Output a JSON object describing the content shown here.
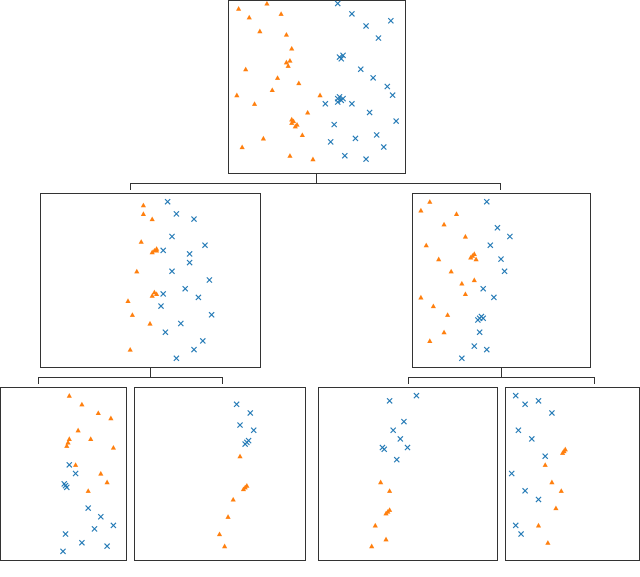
{
  "chart_data": [
    {
      "type": "scatter",
      "xlim": [
        0,
        1
      ],
      "ylim": [
        0,
        1
      ],
      "series": [
        {
          "color": "#ff7f0e",
          "marker": "triangle",
          "x": [
            0.06,
            0.12,
            0.18,
            0.22,
            0.3,
            0.33,
            0.36,
            0.28,
            0.1,
            0.05,
            0.15,
            0.25,
            0.4,
            0.45,
            0.2,
            0.08,
            0.35,
            0.42,
            0.48,
            0.52,
            0.33,
            0.35,
            0.34,
            0.36,
            0.37,
            0.39,
            0.38,
            0.36
          ],
          "y": [
            0.95,
            0.9,
            0.82,
            0.98,
            0.92,
            0.8,
            0.72,
            0.55,
            0.6,
            0.45,
            0.4,
            0.48,
            0.52,
            0.35,
            0.2,
            0.15,
            0.1,
            0.22,
            0.08,
            0.45,
            0.64,
            0.65,
            0.62,
            0.29,
            0.3,
            0.28,
            0.27,
            0.31
          ]
        },
        {
          "color": "#1f77b4",
          "marker": "cross",
          "x": [
            0.62,
            0.7,
            0.78,
            0.85,
            0.92,
            0.75,
            0.82,
            0.9,
            0.7,
            0.8,
            0.95,
            0.6,
            0.72,
            0.88,
            0.66,
            0.78,
            0.84,
            0.93,
            0.55,
            0.58,
            0.63,
            0.65,
            0.64,
            0.62,
            0.63,
            0.64,
            0.62,
            0.65
          ],
          "y": [
            0.98,
            0.92,
            0.85,
            0.78,
            0.88,
            0.6,
            0.55,
            0.5,
            0.4,
            0.35,
            0.3,
            0.28,
            0.2,
            0.15,
            0.1,
            0.08,
            0.22,
            0.45,
            0.4,
            0.18,
            0.67,
            0.68,
            0.66,
            0.43,
            0.44,
            0.42,
            0.41,
            0.43
          ]
        }
      ]
    },
    {
      "type": "scatter",
      "xlim": [
        0,
        1
      ],
      "ylim": [
        0,
        1
      ],
      "series": [
        {
          "color": "#ff7f0e",
          "marker": "triangle",
          "x": [
            0.47,
            0.51,
            0.46,
            0.44,
            0.4,
            0.42,
            0.5,
            0.41,
            0.47,
            0.52,
            0.53,
            0.51,
            0.53,
            0.52,
            0.51,
            0.53
          ],
          "y": [
            0.93,
            0.85,
            0.72,
            0.55,
            0.38,
            0.3,
            0.25,
            0.1,
            0.88,
            0.67,
            0.68,
            0.66,
            0.42,
            0.43,
            0.41,
            0.67
          ]
        },
        {
          "color": "#1f77b4",
          "marker": "cross",
          "x": [
            0.58,
            0.62,
            0.7,
            0.75,
            0.68,
            0.6,
            0.66,
            0.72,
            0.78,
            0.64,
            0.57,
            0.74,
            0.7,
            0.62,
            0.77,
            0.55,
            0.68,
            0.6,
            0.56,
            0.56
          ],
          "y": [
            0.95,
            0.88,
            0.85,
            0.7,
            0.6,
            0.75,
            0.45,
            0.4,
            0.3,
            0.25,
            0.2,
            0.15,
            0.1,
            0.05,
            0.5,
            0.35,
            0.65,
            0.55,
            0.67,
            0.42
          ]
        }
      ]
    },
    {
      "type": "scatter",
      "xlim": [
        0,
        1
      ],
      "ylim": [
        0,
        1
      ],
      "series": [
        {
          "color": "#ff7f0e",
          "marker": "triangle",
          "x": [
            0.05,
            0.1,
            0.18,
            0.25,
            0.3,
            0.08,
            0.15,
            0.22,
            0.28,
            0.05,
            0.12,
            0.2,
            0.3,
            0.35,
            0.18,
            0.1,
            0.34,
            0.35,
            0.33,
            0.36
          ],
          "y": [
            0.9,
            0.95,
            0.82,
            0.88,
            0.75,
            0.7,
            0.62,
            0.55,
            0.48,
            0.4,
            0.35,
            0.3,
            0.42,
            0.5,
            0.2,
            0.15,
            0.64,
            0.65,
            0.63,
            0.62
          ]
        },
        {
          "color": "#1f77b4",
          "marker": "cross",
          "x": [
            0.42,
            0.48,
            0.55,
            0.44,
            0.5,
            0.52,
            0.4,
            0.46,
            0.38,
            0.42,
            0.28,
            0.35,
            0.38,
            0.39,
            0.37,
            0.4
          ],
          "y": [
            0.95,
            0.8,
            0.75,
            0.7,
            0.62,
            0.55,
            0.45,
            0.4,
            0.2,
            0.1,
            0.05,
            0.12,
            0.28,
            0.29,
            0.27,
            0.28
          ]
        }
      ]
    },
    {
      "type": "scatter",
      "xlim": [
        0,
        1
      ],
      "ylim": [
        0,
        1
      ],
      "series": [
        {
          "color": "#ff7f0e",
          "marker": "triangle",
          "x": [
            0.55,
            0.65,
            0.78,
            0.88,
            0.62,
            0.72,
            0.9,
            0.6,
            0.8,
            0.7,
            0.85,
            0.54,
            0.55,
            0.53
          ],
          "y": [
            0.95,
            0.9,
            0.85,
            0.82,
            0.75,
            0.7,
            0.65,
            0.55,
            0.5,
            0.4,
            0.45,
            0.68,
            0.7,
            0.66
          ]
        },
        {
          "color": "#1f77b4",
          "marker": "cross",
          "x": [
            0.55,
            0.6,
            0.7,
            0.8,
            0.9,
            0.52,
            0.65,
            0.75,
            0.85,
            0.5,
            0.52,
            0.51,
            0.53
          ],
          "y": [
            0.55,
            0.5,
            0.3,
            0.25,
            0.2,
            0.15,
            0.1,
            0.18,
            0.08,
            0.05,
            0.43,
            0.44,
            0.42
          ]
        }
      ]
    },
    {
      "type": "scatter",
      "xlim": [
        0,
        1
      ],
      "ylim": [
        0,
        1
      ],
      "series": [
        {
          "color": "#1f77b4",
          "marker": "cross",
          "x": [
            0.6,
            0.68,
            0.62,
            0.7,
            0.66,
            0.67,
            0.65
          ],
          "y": [
            0.9,
            0.85,
            0.78,
            0.75,
            0.68,
            0.69,
            0.67
          ]
        },
        {
          "color": "#ff7f0e",
          "marker": "triangle",
          "x": [
            0.62,
            0.58,
            0.55,
            0.5,
            0.53,
            0.65,
            0.66,
            0.64
          ],
          "y": [
            0.6,
            0.35,
            0.25,
            0.15,
            0.08,
            0.42,
            0.43,
            0.41
          ]
        }
      ]
    },
    {
      "type": "scatter",
      "xlim": [
        0,
        1
      ],
      "ylim": [
        0,
        1
      ],
      "series": [
        {
          "color": "#1f77b4",
          "marker": "cross",
          "x": [
            0.4,
            0.55,
            0.48,
            0.42,
            0.46,
            0.5,
            0.44,
            0.37,
            0.36
          ],
          "y": [
            0.92,
            0.95,
            0.8,
            0.75,
            0.7,
            0.65,
            0.58,
            0.64,
            0.65
          ]
        },
        {
          "color": "#ff7f0e",
          "marker": "triangle",
          "x": [
            0.35,
            0.4,
            0.32,
            0.3,
            0.38,
            0.39,
            0.4,
            0.38
          ],
          "y": [
            0.45,
            0.4,
            0.2,
            0.08,
            0.12,
            0.28,
            0.29,
            0.27
          ]
        }
      ]
    },
    {
      "type": "scatter",
      "xlim": [
        0,
        1
      ],
      "ylim": [
        0,
        1
      ],
      "series": [
        {
          "color": "#1f77b4",
          "marker": "cross",
          "x": [
            0.08,
            0.15,
            0.25,
            0.35,
            0.1,
            0.2,
            0.3,
            0.05,
            0.15,
            0.25,
            0.08,
            0.12
          ],
          "y": [
            0.95,
            0.9,
            0.92,
            0.85,
            0.75,
            0.7,
            0.6,
            0.5,
            0.4,
            0.35,
            0.2,
            0.15
          ]
        },
        {
          "color": "#ff7f0e",
          "marker": "triangle",
          "x": [
            0.3,
            0.35,
            0.38,
            0.25,
            0.32,
            0.42,
            0.44,
            0.45,
            0.43
          ],
          "y": [
            0.55,
            0.45,
            0.3,
            0.2,
            0.1,
            0.4,
            0.63,
            0.64,
            0.62
          ]
        }
      ]
    }
  ]
}
